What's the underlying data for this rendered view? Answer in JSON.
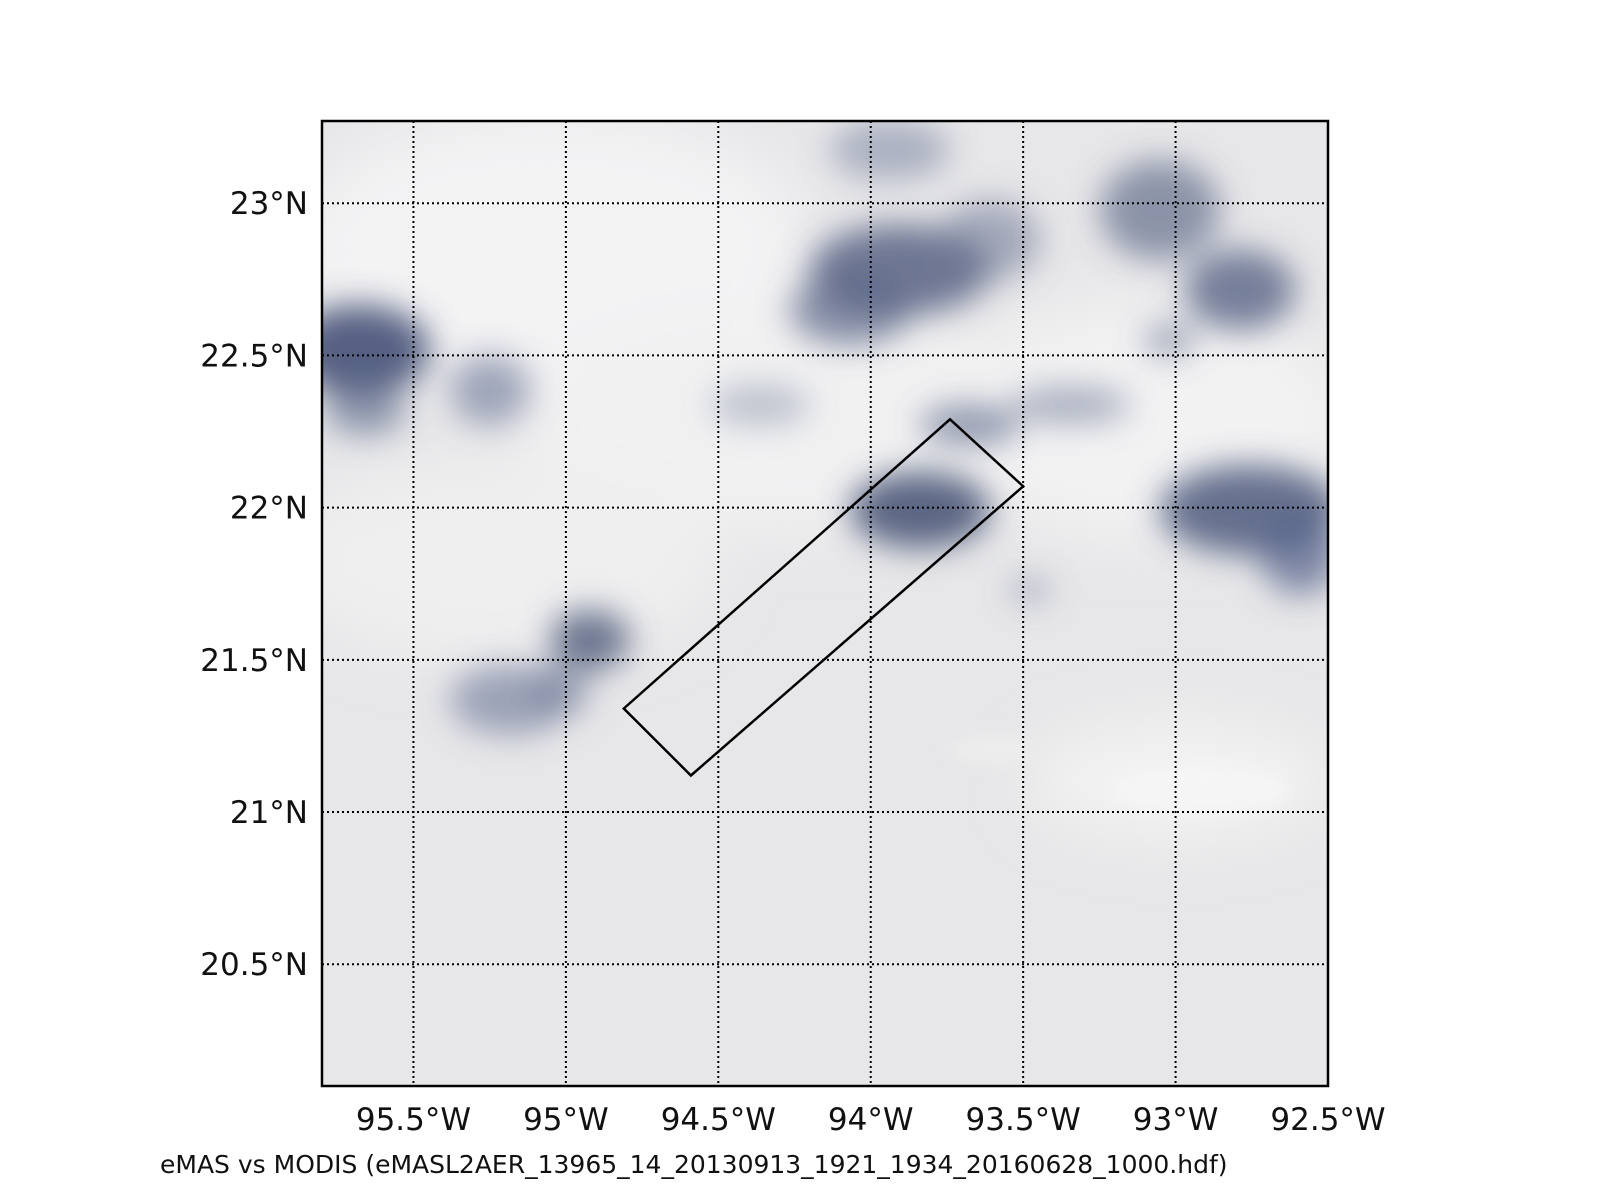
{
  "map": {
    "extent": {
      "lon_min": -95.8,
      "lon_max": -92.5,
      "lat_min": 20.1,
      "lat_max": 23.27
    },
    "lat_gridlines": [
      {
        "value": 20.5,
        "label": "20.5°N"
      },
      {
        "value": 21.0,
        "label": "21°N"
      },
      {
        "value": 21.5,
        "label": "21.5°N"
      },
      {
        "value": 22.0,
        "label": "22°N"
      },
      {
        "value": 22.5,
        "label": "22.5°N"
      },
      {
        "value": 23.0,
        "label": "23°N"
      }
    ],
    "lon_gridlines": [
      {
        "value": -95.5,
        "label": "95.5°W"
      },
      {
        "value": -95.0,
        "label": "95°W"
      },
      {
        "value": -94.5,
        "label": "94.5°W"
      },
      {
        "value": -94.0,
        "label": "94°W"
      },
      {
        "value": -93.5,
        "label": "93.5°W"
      },
      {
        "value": -93.0,
        "label": "93°W"
      },
      {
        "value": -92.5,
        "label": "92.5°W"
      }
    ],
    "emas_swath_polygon": [
      {
        "lon": -94.81,
        "lat": 21.34
      },
      {
        "lon": -93.74,
        "lat": 22.29
      },
      {
        "lon": -93.5,
        "lat": 22.07
      },
      {
        "lon": -94.59,
        "lat": 21.12
      }
    ],
    "colors": {
      "background_clear": "#e6e6e8",
      "cloud_shadow": "#4a5676",
      "cloud_bright": "#f4f4f4",
      "frame": "#000000",
      "swath_outline": "#000000"
    }
  },
  "caption": "eMAS vs MODIS (eMASL2AER_13965_14_20130913_1921_1934_20160628_1000.hdf)"
}
